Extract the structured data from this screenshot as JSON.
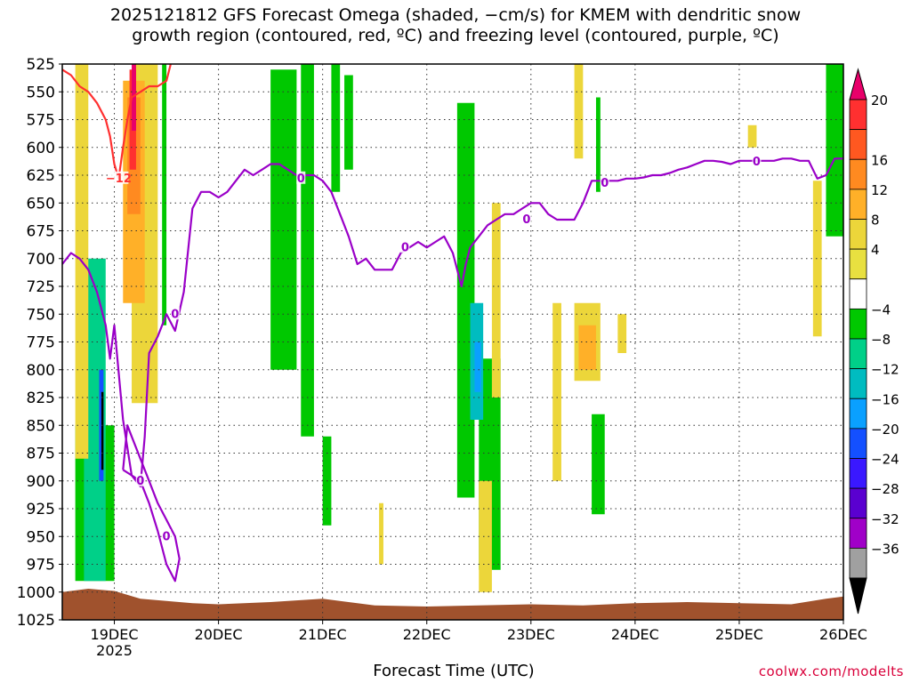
{
  "title_line1": "2025121812 GFS Forecast Omega (shaded, −cm/s) for KMEM with dendritic snow",
  "title_line2": "growth region (contoured, red, ºC) and freezing level (contoured, purple, ºC)",
  "xlabel": "Forecast Time (UTC)",
  "credit": "coolwx.com/modelts",
  "chart_data": {
    "type": "heatmap",
    "title": "2025121812 GFS Forecast Omega (shaded, −cm/s) for KMEM with dendritic snow growth region (contoured, red, ºC) and freezing level (contoured, purple, ºC)",
    "xlabel": "Forecast Time (UTC)",
    "ylabel": "",
    "x_unit": "hours since 2025-12-18 12 UTC",
    "x_range": [
      0,
      180
    ],
    "y_range": [
      525,
      1025
    ],
    "y_reversed": true,
    "grid": true,
    "x_ticks": [
      {
        "x": 12,
        "label": "19DEC",
        "sub": "2025"
      },
      {
        "x": 36,
        "label": "20DEC",
        "sub": ""
      },
      {
        "x": 60,
        "label": "21DEC",
        "sub": ""
      },
      {
        "x": 84,
        "label": "22DEC",
        "sub": ""
      },
      {
        "x": 108,
        "label": "23DEC",
        "sub": ""
      },
      {
        "x": 132,
        "label": "24DEC",
        "sub": ""
      },
      {
        "x": 156,
        "label": "25DEC",
        "sub": ""
      },
      {
        "x": 180,
        "label": "26DEC",
        "sub": ""
      }
    ],
    "y_ticks": [
      525,
      550,
      575,
      600,
      625,
      650,
      675,
      700,
      725,
      750,
      775,
      800,
      825,
      850,
      875,
      900,
      925,
      950,
      975,
      1000,
      1025
    ],
    "colorbar": {
      "labels": [
        "20",
        "16",
        "12",
        "8",
        "4",
        "−4",
        "−8",
        "−12",
        "−16",
        "−20",
        "−24",
        "−28",
        "−32",
        "−36"
      ],
      "colors": [
        "#e8006a",
        "#ff3030",
        "#ff5820",
        "#ff8a20",
        "#ffb028",
        "#ecd63a",
        "#e8e040",
        "#ffffff",
        "#00c800",
        "#00d088",
        "#00bcc0",
        "#0aa0ff",
        "#1450ff",
        "#3a18ff",
        "#5a00d0",
        "#a000c8",
        "#a0a0a0",
        "#000000"
      ]
    },
    "omega_regions": [
      {
        "color": "#00c800",
        "x": [
          23,
          24
        ],
        "p": [
          525,
          760
        ],
        "value": -6
      },
      {
        "color": "#00c800",
        "x": [
          3,
          12
        ],
        "p": [
          850,
          990
        ],
        "value": -8
      },
      {
        "color": "#00c800",
        "x": [
          48,
          54
        ],
        "p": [
          530,
          800
        ],
        "value": -8
      },
      {
        "color": "#00c800",
        "x": [
          55,
          58
        ],
        "p": [
          525,
          860
        ],
        "value": -6
      },
      {
        "color": "#00c800",
        "x": [
          62,
          64
        ],
        "p": [
          525,
          640
        ],
        "value": -6
      },
      {
        "color": "#00c800",
        "x": [
          65,
          67
        ],
        "p": [
          535,
          620
        ],
        "value": -6
      },
      {
        "color": "#00c800",
        "x": [
          60,
          62
        ],
        "p": [
          860,
          940
        ],
        "value": -6
      },
      {
        "color": "#00c800",
        "x": [
          91,
          95
        ],
        "p": [
          560,
          915
        ],
        "value": -6
      },
      {
        "color": "#00c800",
        "x": [
          96,
          101
        ],
        "p": [
          790,
          980
        ],
        "value": -6
      },
      {
        "color": "#00c800",
        "x": [
          123,
          124
        ],
        "p": [
          555,
          640
        ],
        "value": -6
      },
      {
        "color": "#00c800",
        "x": [
          122,
          125
        ],
        "p": [
          840,
          930
        ],
        "value": -8
      },
      {
        "color": "#00c800",
        "x": [
          176,
          180
        ],
        "p": [
          525,
          680
        ],
        "value": -6
      },
      {
        "color": "#00d088",
        "x": [
          5,
          10
        ],
        "p": [
          700,
          990
        ],
        "value": -10
      },
      {
        "color": "#00bcc0",
        "x": [
          94,
          97
        ],
        "p": [
          740,
          845
        ],
        "value": -14
      },
      {
        "color": "#0aa0ff",
        "x": [
          95,
          96.5
        ],
        "p": [
          775,
          820
        ],
        "value": -18
      },
      {
        "color": "#1450ff",
        "x": [
          8.5,
          9.5
        ],
        "p": [
          800,
          900
        ],
        "value": -22
      },
      {
        "color": "#000000",
        "x": [
          9,
          9.5
        ],
        "p": [
          820,
          890
        ],
        "value": -38
      },
      {
        "color": "#ecd63a",
        "x": [
          3,
          6
        ],
        "p": [
          525,
          880
        ],
        "value": 5
      },
      {
        "color": "#ecd63a",
        "x": [
          16,
          22
        ],
        "p": [
          525,
          830
        ],
        "value": 5
      },
      {
        "color": "#ffb028",
        "x": [
          14,
          19
        ],
        "p": [
          540,
          740
        ],
        "value": 9
      },
      {
        "color": "#ff8a20",
        "x": [
          15,
          18
        ],
        "p": [
          555,
          660
        ],
        "value": 12
      },
      {
        "color": "#ff3030",
        "x": [
          15.5,
          17
        ],
        "p": [
          530,
          620
        ],
        "value": 17
      },
      {
        "color": "#e8006a",
        "x": [
          16,
          17
        ],
        "p": [
          525,
          585
        ],
        "value": 21
      },
      {
        "color": "#ecd63a",
        "x": [
          99,
          101
        ],
        "p": [
          650,
          825
        ],
        "value": 5
      },
      {
        "color": "#ecd63a",
        "x": [
          96,
          99
        ],
        "p": [
          900,
          1000
        ],
        "value": 5
      },
      {
        "color": "#ecd63a",
        "x": [
          113,
          115
        ],
        "p": [
          740,
          900
        ],
        "value": 5
      },
      {
        "color": "#ecd63a",
        "x": [
          118,
          120
        ],
        "p": [
          525,
          610
        ],
        "value": 5
      },
      {
        "color": "#ecd63a",
        "x": [
          118,
          124
        ],
        "p": [
          740,
          810
        ],
        "value": 5
      },
      {
        "color": "#ffb028",
        "x": [
          119,
          123
        ],
        "p": [
          760,
          800
        ],
        "value": 8
      },
      {
        "color": "#ecd63a",
        "x": [
          128,
          130
        ],
        "p": [
          750,
          785
        ],
        "value": 5
      },
      {
        "color": "#ecd63a",
        "x": [
          158,
          160
        ],
        "p": [
          580,
          600
        ],
        "value": 5
      },
      {
        "color": "#ecd63a",
        "x": [
          173,
          175
        ],
        "p": [
          630,
          770
        ],
        "value": 5
      },
      {
        "color": "#ecd63a",
        "x": [
          73,
          74
        ],
        "p": [
          920,
          975
        ],
        "value": 5
      }
    ],
    "series": [
      {
        "name": "freezing level (0ºC)",
        "color": "#9a00c8",
        "label": "0",
        "x": [
          0,
          2,
          4,
          6,
          8,
          10,
          11,
          12,
          14,
          16,
          18,
          19,
          20,
          22,
          24,
          26,
          28,
          30,
          32,
          34,
          36,
          38,
          40,
          42,
          44,
          46,
          48,
          50,
          52,
          54,
          56,
          58,
          60,
          62,
          64,
          66,
          68,
          70,
          72,
          74,
          76,
          78,
          80,
          82,
          84,
          86,
          88,
          90,
          92,
          93,
          94,
          96,
          98,
          100,
          102,
          104,
          106,
          108,
          110,
          112,
          114,
          116,
          118,
          120,
          122,
          124,
          126,
          128,
          130,
          132,
          134,
          136,
          138,
          140,
          142,
          144,
          146,
          148,
          150,
          152,
          154,
          156,
          158,
          160,
          162,
          164,
          166,
          168,
          170,
          172,
          174,
          176,
          178,
          180
        ],
        "y": [
          705,
          695,
          700,
          710,
          730,
          760,
          790,
          760,
          845,
          895,
          905,
          860,
          785,
          770,
          750,
          765,
          730,
          655,
          640,
          640,
          645,
          640,
          630,
          620,
          625,
          620,
          615,
          615,
          620,
          625,
          625,
          625,
          630,
          640,
          660,
          680,
          705,
          700,
          710,
          710,
          710,
          695,
          690,
          685,
          690,
          685,
          680,
          695,
          725,
          705,
          690,
          680,
          670,
          665,
          660,
          660,
          655,
          650,
          650,
          660,
          665,
          665,
          665,
          650,
          630,
          630,
          630,
          630,
          628,
          628,
          627,
          625,
          625,
          623,
          620,
          618,
          615,
          612,
          612,
          613,
          615,
          612,
          612,
          612,
          612,
          612,
          610,
          610,
          612,
          612,
          628,
          625,
          610,
          610
        ],
        "labels_at": [
          [
            26,
            750
          ],
          [
            55,
            628
          ],
          [
            79,
            690
          ],
          [
            107,
            665
          ],
          [
            125,
            632
          ],
          [
            160,
            613
          ]
        ]
      },
      {
        "name": "freezing level loop (0ºC)",
        "color": "#9a00c8",
        "x": [
          14,
          16,
          18,
          20,
          22,
          24,
          26,
          27,
          26,
          24,
          22,
          20,
          18,
          16,
          15,
          14
        ],
        "y": [
          890,
          895,
          900,
          920,
          945,
          975,
          990,
          970,
          950,
          935,
          920,
          900,
          880,
          860,
          850,
          890
        ],
        "labels_at": [
          [
            18,
            900
          ],
          [
            24,
            950
          ]
        ]
      },
      {
        "name": "dendritic snow growth region (−12ºC)",
        "color": "#ff3030",
        "label": "−12",
        "x": [
          0,
          2,
          4,
          6,
          8,
          10,
          11,
          12,
          13,
          14,
          15,
          16,
          18,
          20,
          22,
          24,
          25
        ],
        "y": [
          530,
          535,
          545,
          550,
          560,
          575,
          590,
          615,
          628,
          600,
          575,
          555,
          550,
          545,
          545,
          540,
          525
        ],
        "labels_at": [
          [
            13,
            628
          ]
        ]
      }
    ],
    "ground": {
      "color": "#a0522d",
      "label": "terrain"
    }
  }
}
